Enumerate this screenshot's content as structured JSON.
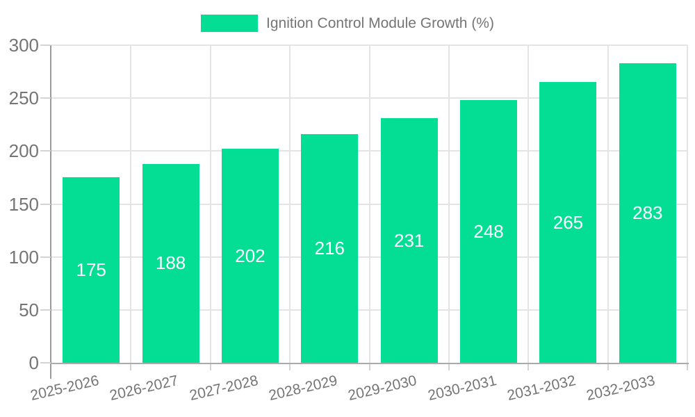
{
  "chart": {
    "legend": {
      "label": "Ignition Control Module Growth (%)"
    }
  },
  "chart_data": {
    "type": "bar",
    "title": "Ignition Control Module Growth (%)",
    "categories": [
      "2025-2026",
      "2026-2027",
      "2027-2028",
      "2028-2029",
      "2029-2030",
      "2030-2031",
      "2031-2032",
      "2032-2033"
    ],
    "values": [
      175,
      188,
      202,
      216,
      231,
      248,
      265,
      283
    ],
    "xlabel": "",
    "ylabel": "",
    "ylim": [
      0,
      300
    ],
    "yticks": [
      0,
      50,
      100,
      150,
      200,
      250,
      300
    ],
    "grid": true,
    "legend_position": "top-center",
    "show_value_labels": true,
    "value_label_position": "bar-center"
  },
  "colors": {
    "bar": "#03de94",
    "grid": "#e4e4e4",
    "axis_line": "#999999",
    "axis_line_x": "#ababab",
    "tick_mark": "#d4d4d4",
    "text": "#757575",
    "value_label": "#ffffff"
  }
}
